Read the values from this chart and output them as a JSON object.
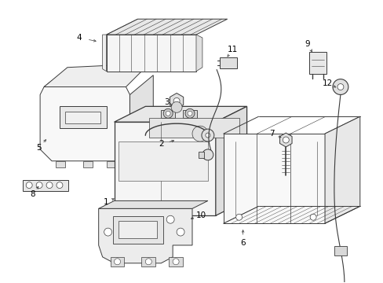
{
  "background_color": "#ffffff",
  "line_color": "#3a3a3a",
  "label_color": "#000000",
  "fig_width": 4.89,
  "fig_height": 3.6,
  "dpi": 100
}
